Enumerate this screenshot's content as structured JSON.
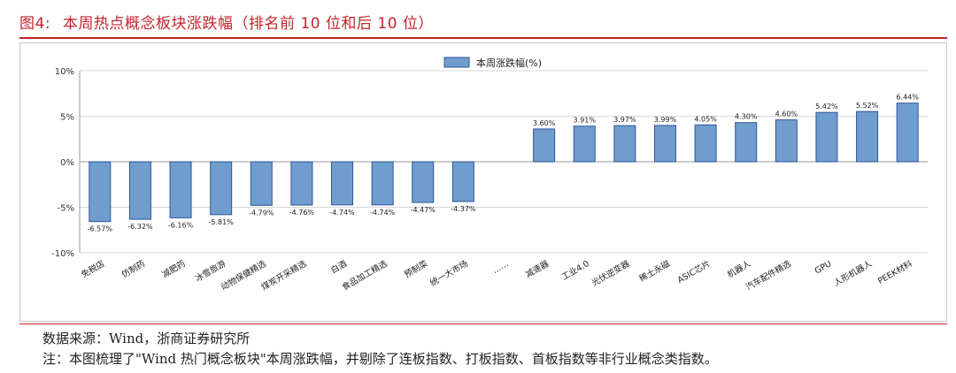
{
  "figure": {
    "label": "图4:",
    "title": "本周热点概念板块涨跌幅（排名前 10 位和后 10 位）"
  },
  "chart_data": {
    "type": "bar",
    "categories": [
      "免税店",
      "仿制药",
      "减肥药",
      "冰雪旅游",
      "动物保健精选",
      "煤炭开采精选",
      "白酒",
      "食品加工精选",
      "预制菜",
      "统一大市场",
      "……",
      "减速器",
      "工业4.0",
      "光伏逆变器",
      "稀土永磁",
      "ASIC芯片",
      "机器人",
      "汽车配件精选",
      "GPU",
      "人形机器人",
      "PEEK材料"
    ],
    "series": [
      {
        "name": "本周涨跌幅(%)",
        "values": [
          -6.57,
          -6.32,
          -6.16,
          -5.81,
          -4.79,
          -4.76,
          -4.74,
          -4.74,
          -4.47,
          -4.37,
          null,
          3.6,
          3.91,
          3.97,
          3.99,
          4.05,
          4.3,
          4.6,
          5.42,
          5.52,
          6.44
        ],
        "labels": [
          "-6.57%",
          "-6.32%",
          "-6.16%",
          "-5.81%",
          "-4.79%",
          "-4.76%",
          "-4.74%",
          "-4.74%",
          "-4.47%",
          "-4.37%",
          "",
          "3.60%",
          "3.91%",
          "3.97%",
          "3.99%",
          "4.05%",
          "4.30%",
          "4.60%",
          "5.42%",
          "5.52%",
          "6.44%"
        ],
        "color": "#6f9dce",
        "edge": "#2f5597"
      }
    ],
    "yticks": [
      "10%",
      "5%",
      "0%",
      "-5%",
      "-10%"
    ],
    "ytick_values": [
      10,
      5,
      0,
      -5,
      -10
    ],
    "ylim": [
      -10,
      10
    ],
    "grid": true,
    "legend_position": "top-center"
  },
  "footer": {
    "source": "数据来源：Wind，浙商证券研究所",
    "note": "注：本图梳理了\"Wind 热门概念板块\"本周涨跌幅，并剔除了连板指数、打板指数、首板指数等非行业概念类指数。"
  }
}
